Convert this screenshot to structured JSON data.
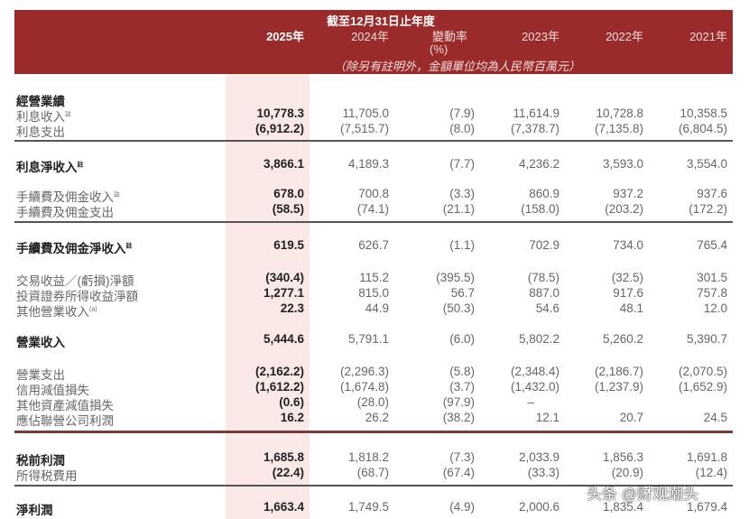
{
  "header": {
    "period": "截至12月31日止年度",
    "columns": [
      "2025年",
      "2024年",
      "變動率",
      "2023年",
      "2022年",
      "2021年"
    ],
    "pct_unit": "(%)",
    "note": "（除另有註明外，金額單位均為人民幣百萬元）"
  },
  "colors": {
    "header_bg": "#9b2a2a",
    "highlight_column": "#fbe9e8"
  },
  "rows": [
    {
      "label": "經營業績",
      "bold": true,
      "values": []
    },
    {
      "label": "利息收入",
      "sup": "註",
      "values": [
        "10,778.3",
        "11,705.0",
        "(7.9)",
        "11,614.9",
        "10,728.8",
        "10,358.5"
      ]
    },
    {
      "label": "利息支出",
      "values": [
        "(6,912.2)",
        "(7,515.7)",
        "(8.0)",
        "(7,378.7)",
        "(7,135.8)",
        "(6,804.5)"
      ]
    },
    {
      "label": "利息淨收入",
      "sup": "註",
      "bold": true,
      "values": [
        "3,866.1",
        "4,189.3",
        "(7.7)",
        "4,236.2",
        "3,593.0",
        "3,554.0"
      ]
    },
    {
      "label": "手續費及佣金收入",
      "sup": "註",
      "values": [
        "678.0",
        "700.8",
        "(3.3)",
        "860.9",
        "937.2",
        "937.6"
      ]
    },
    {
      "label": "手續費及佣金支出",
      "values": [
        "(58.5)",
        "(74.1)",
        "(21.1)",
        "(158.0)",
        "(203.2)",
        "(172.2)"
      ]
    },
    {
      "label": "手續費及佣金淨收入",
      "sup": "註",
      "bold": true,
      "values": [
        "619.5",
        "626.7",
        "(1.1)",
        "702.9",
        "734.0",
        "765.4"
      ]
    },
    {
      "label": "交易收益／(虧損)淨額",
      "values": [
        "(340.4)",
        "115.2",
        "(395.5)",
        "(78.5)",
        "(32.5)",
        "301.5"
      ]
    },
    {
      "label": "投資證券所得收益淨額",
      "values": [
        "1,277.1",
        "815.0",
        "56.7",
        "887.0",
        "917.6",
        "757.8"
      ]
    },
    {
      "label": "其他營業收入",
      "sup": "(a)",
      "values": [
        "22.3",
        "44.9",
        "(50.3)",
        "54.6",
        "48.1",
        "12.0"
      ]
    },
    {
      "label": "營業收入",
      "bold": true,
      "values": [
        "5,444.6",
        "5,791.1",
        "(6.0)",
        "5,802.2",
        "5,260.2",
        "5,390.7"
      ]
    },
    {
      "label": "營業支出",
      "values": [
        "(2,162.2)",
        "(2,296.3)",
        "(5.8)",
        "(2,348.4)",
        "(2,186.7)",
        "(2,070.5)"
      ]
    },
    {
      "label": "信用減值損失",
      "values": [
        "(1,612.2)",
        "(1,674.8)",
        "(3.7)",
        "(1,432.0)",
        "(1,237.9)",
        "(1,652.9)"
      ]
    },
    {
      "label": "其他資產減值損失",
      "values": [
        "(0.6)",
        "(28.0)",
        "(97.9)",
        "–",
        "",
        ""
      ]
    },
    {
      "label": "應佔聯營公司利潤",
      "values": [
        "16.2",
        "26.2",
        "(38.2)",
        "12.1",
        "20.7",
        "24.5"
      ]
    },
    {
      "label": "税前利潤",
      "bold": true,
      "values": [
        "1,685.8",
        "1,818.2",
        "(7.3)",
        "2,033.9",
        "1,856.3",
        "1,691.8"
      ]
    },
    {
      "label": "所得税費用",
      "values": [
        "(22.4)",
        "(68.7)",
        "(67.4)",
        "(33.3)",
        "(20.9)",
        "(12.4)"
      ]
    },
    {
      "label": "淨利潤",
      "bold": true,
      "values": [
        "1,663.4",
        "1,749.5",
        "(4.9)",
        "2,000.6",
        "1,835.4",
        "1,679.4"
      ]
    }
  ],
  "watermark": "头条 @财观潮头"
}
